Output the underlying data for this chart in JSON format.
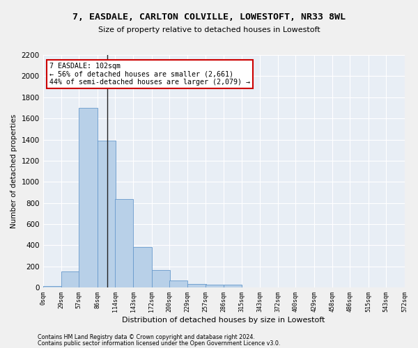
{
  "title1": "7, EASDALE, CARLTON COLVILLE, LOWESTOFT, NR33 8WL",
  "title2": "Size of property relative to detached houses in Lowestoft",
  "xlabel": "Distribution of detached houses by size in Lowestoft",
  "ylabel": "Number of detached properties",
  "bar_values": [
    15,
    155,
    1700,
    1390,
    835,
    385,
    165,
    65,
    35,
    25,
    25,
    0,
    0,
    0,
    0,
    0,
    0,
    0,
    0
  ],
  "bin_edges": [
    0,
    29,
    57,
    86,
    114,
    143,
    172,
    200,
    229,
    257,
    286,
    315,
    343,
    372,
    400,
    429,
    458,
    486,
    515
  ],
  "bin_width": 29,
  "tick_positions": [
    0,
    29,
    57,
    86,
    114,
    143,
    172,
    200,
    229,
    257,
    286,
    315,
    343,
    372,
    400,
    429,
    458,
    486,
    515,
    543,
    572
  ],
  "tick_labels": [
    "0sqm",
    "29sqm",
    "57sqm",
    "86sqm",
    "114sqm",
    "143sqm",
    "172sqm",
    "200sqm",
    "229sqm",
    "257sqm",
    "286sqm",
    "315sqm",
    "343sqm",
    "372sqm",
    "400sqm",
    "429sqm",
    "458sqm",
    "486sqm",
    "515sqm",
    "543sqm",
    "572sqm"
  ],
  "bar_color": "#b8d0e8",
  "bar_edge_color": "#6699cc",
  "vline_x": 102,
  "annotation_line1": "7 EASDALE: 102sqm",
  "annotation_line2": "← 56% of detached houses are smaller (2,661)",
  "annotation_line3": "44% of semi-detached houses are larger (2,079) →",
  "annotation_box_color": "#ffffff",
  "annotation_box_edge": "#cc0000",
  "ylim": [
    0,
    2200
  ],
  "yticks": [
    0,
    200,
    400,
    600,
    800,
    1000,
    1200,
    1400,
    1600,
    1800,
    2000,
    2200
  ],
  "bg_color": "#e8eef5",
  "grid_color": "#ffffff",
  "fig_bg": "#f0f0f0",
  "footer1": "Contains HM Land Registry data © Crown copyright and database right 2024.",
  "footer2": "Contains public sector information licensed under the Open Government Licence v3.0."
}
